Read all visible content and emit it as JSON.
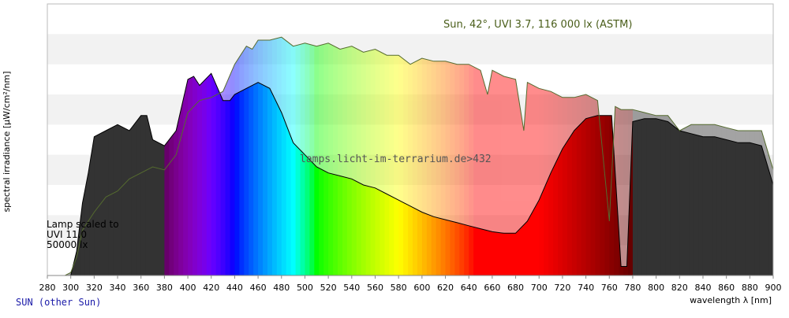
{
  "chart_data": {
    "type": "area",
    "xlabel": "wavelength λ [nm]",
    "ylabel": "spectral irradiance [µW/cm²/nm]",
    "xlim": [
      280,
      900
    ],
    "x_ticks": [
      280,
      300,
      320,
      340,
      360,
      380,
      400,
      420,
      440,
      460,
      480,
      500,
      520,
      540,
      560,
      580,
      600,
      620,
      640,
      660,
      680,
      700,
      720,
      740,
      760,
      780,
      800,
      820,
      840,
      860,
      880,
      900
    ],
    "ylim": [
      0,
      9
    ],
    "grid": "horizontal bands",
    "annotations": {
      "sun_label": "Sun, 42°, UVI 3.7, 116 000 lx (ASTM)",
      "watermark": "lamps.licht-im-terrarium.de>432",
      "lamp_note": [
        "Lamp scaled to",
        "UVI 11.0",
        "50000 lx"
      ],
      "footer": "SUN (other Sun)"
    },
    "colors": {
      "sun_line": "#556b2f",
      "lamp_line": "#000000",
      "band": "#f2f2f2",
      "uv_band": "#333333",
      "ir_band": "#333333"
    },
    "series": [
      {
        "name": "Sun, 42°, UVI 3.7, 116 000 lx (ASTM)",
        "x": [
          280,
          295,
          300,
          305,
          310,
          315,
          320,
          330,
          340,
          350,
          360,
          370,
          380,
          390,
          400,
          410,
          420,
          430,
          440,
          450,
          455,
          460,
          470,
          480,
          490,
          500,
          510,
          520,
          530,
          540,
          550,
          560,
          570,
          580,
          590,
          600,
          610,
          620,
          630,
          640,
          650,
          656,
          660,
          670,
          680,
          687,
          690,
          700,
          710,
          720,
          730,
          740,
          750,
          760,
          765,
          770,
          780,
          790,
          800,
          810,
          820,
          830,
          840,
          850,
          860,
          870,
          880,
          890,
          900
        ],
        "y": [
          0,
          0,
          0.1,
          0.6,
          1.5,
          1.8,
          2.1,
          2.6,
          2.8,
          3.2,
          3.4,
          3.6,
          3.5,
          4.0,
          5.4,
          5.8,
          5.9,
          6.1,
          7.0,
          7.6,
          7.5,
          7.8,
          7.8,
          7.9,
          7.6,
          7.7,
          7.6,
          7.7,
          7.5,
          7.6,
          7.4,
          7.5,
          7.3,
          7.3,
          7.0,
          7.2,
          7.1,
          7.1,
          7.0,
          7.0,
          6.8,
          6.0,
          6.8,
          6.6,
          6.5,
          4.8,
          6.4,
          6.2,
          6.1,
          5.9,
          5.9,
          6.0,
          5.8,
          1.8,
          5.6,
          5.5,
          5.5,
          5.4,
          5.3,
          5.3,
          4.8,
          5.0,
          5.0,
          5.0,
          4.9,
          4.8,
          4.8,
          4.8,
          3.5
        ]
      },
      {
        "name": "",
        "x": [
          280,
          300,
          305,
          310,
          315,
          320,
          330,
          340,
          350,
          360,
          365,
          370,
          380,
          390,
          400,
          405,
          410,
          420,
          430,
          436,
          440,
          450,
          460,
          470,
          480,
          490,
          500,
          510,
          520,
          530,
          540,
          550,
          560,
          570,
          580,
          590,
          600,
          610,
          620,
          630,
          640,
          650,
          660,
          670,
          680,
          690,
          700,
          710,
          720,
          730,
          740,
          750,
          760,
          762,
          770,
          775,
          780,
          790,
          800,
          810,
          820,
          830,
          840,
          850,
          860,
          870,
          880,
          890,
          900
        ],
        "y": [
          0,
          0,
          0.8,
          2.4,
          3.4,
          4.6,
          4.8,
          5.0,
          4.8,
          5.3,
          5.3,
          4.5,
          4.3,
          4.8,
          6.5,
          6.6,
          6.3,
          6.7,
          5.8,
          5.8,
          6.0,
          6.2,
          6.4,
          6.2,
          5.4,
          4.4,
          4.0,
          3.6,
          3.4,
          3.3,
          3.2,
          3.0,
          2.9,
          2.7,
          2.5,
          2.3,
          2.1,
          1.95,
          1.85,
          1.75,
          1.65,
          1.55,
          1.45,
          1.4,
          1.4,
          1.8,
          2.5,
          3.4,
          4.2,
          4.8,
          5.2,
          5.3,
          5.3,
          5.3,
          0.3,
          0.3,
          5.1,
          5.2,
          5.2,
          5.1,
          4.8,
          4.7,
          4.6,
          4.6,
          4.5,
          4.4,
          4.4,
          4.3,
          3.0
        ]
      }
    ]
  }
}
